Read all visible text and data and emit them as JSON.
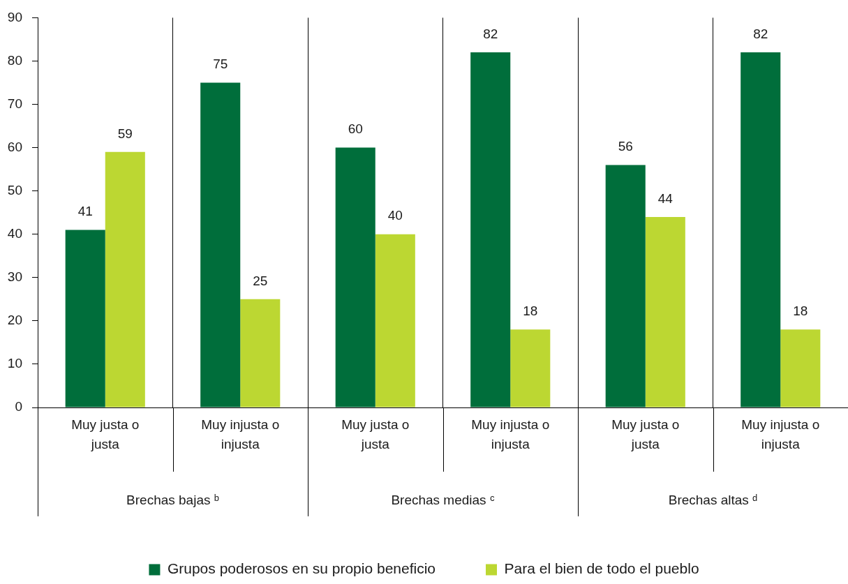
{
  "chart_data": {
    "type": "bar",
    "categories": [
      "Muy justa o justa",
      "Muy injusta o injusta",
      "Muy justa o justa",
      "Muy injusta o injusta",
      "Muy justa o justa",
      "Muy injusta o injusta"
    ],
    "series": [
      {
        "name": "Grupos poderosos en su propio beneficio",
        "color": "#006e3b",
        "values": [
          41,
          75,
          60,
          82,
          56,
          82
        ]
      },
      {
        "name": "Para el bien de todo el pueblo",
        "color": "#bcd732",
        "values": [
          59,
          25,
          40,
          18,
          44,
          18
        ]
      }
    ],
    "ylim": [
      0,
      90
    ],
    "yticks": [
      0,
      10,
      20,
      30,
      40,
      50,
      60,
      70,
      80,
      90
    ],
    "grid": "x",
    "legend": "bottom",
    "data_labels": true,
    "annotations": [
      "Brechas bajas ᵇ",
      "Brechas medias ᶜ",
      "Brechas altas ᵈ"
    ]
  }
}
